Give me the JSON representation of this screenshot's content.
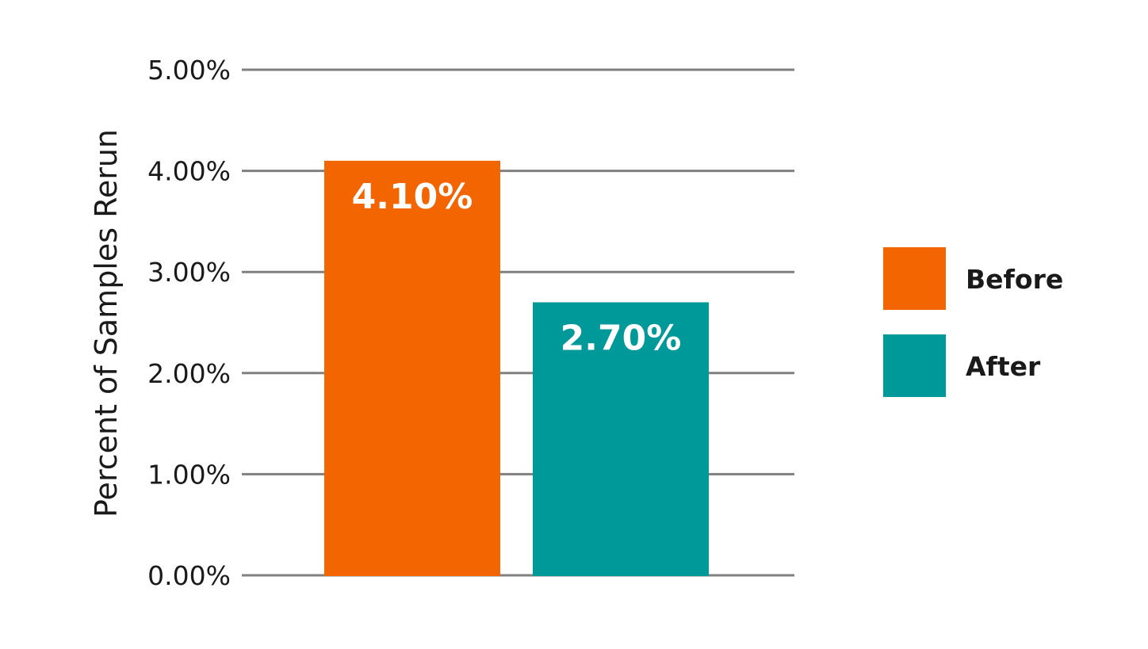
{
  "chart_data": {
    "type": "bar",
    "categories": [
      "Before",
      "After"
    ],
    "values": [
      4.1,
      2.7
    ],
    "value_labels": [
      "4.10%",
      "2.70%"
    ],
    "colors": [
      "#f26500",
      "#009999"
    ],
    "title": "",
    "xlabel": "",
    "ylabel": "Percent of Samples Rerun",
    "ylim": [
      0,
      5
    ],
    "yticks": [
      0,
      1,
      2,
      3,
      4,
      5
    ],
    "ytick_labels": [
      "0.00%",
      "1.00%",
      "2.00%",
      "3.00%",
      "4.00%",
      "5.00%"
    ],
    "grid": true,
    "gridline_color": "#808080",
    "legend": {
      "placement": "right",
      "entries": [
        {
          "label": "Before",
          "color": "#f26500"
        },
        {
          "label": "After",
          "color": "#009999"
        }
      ]
    }
  }
}
